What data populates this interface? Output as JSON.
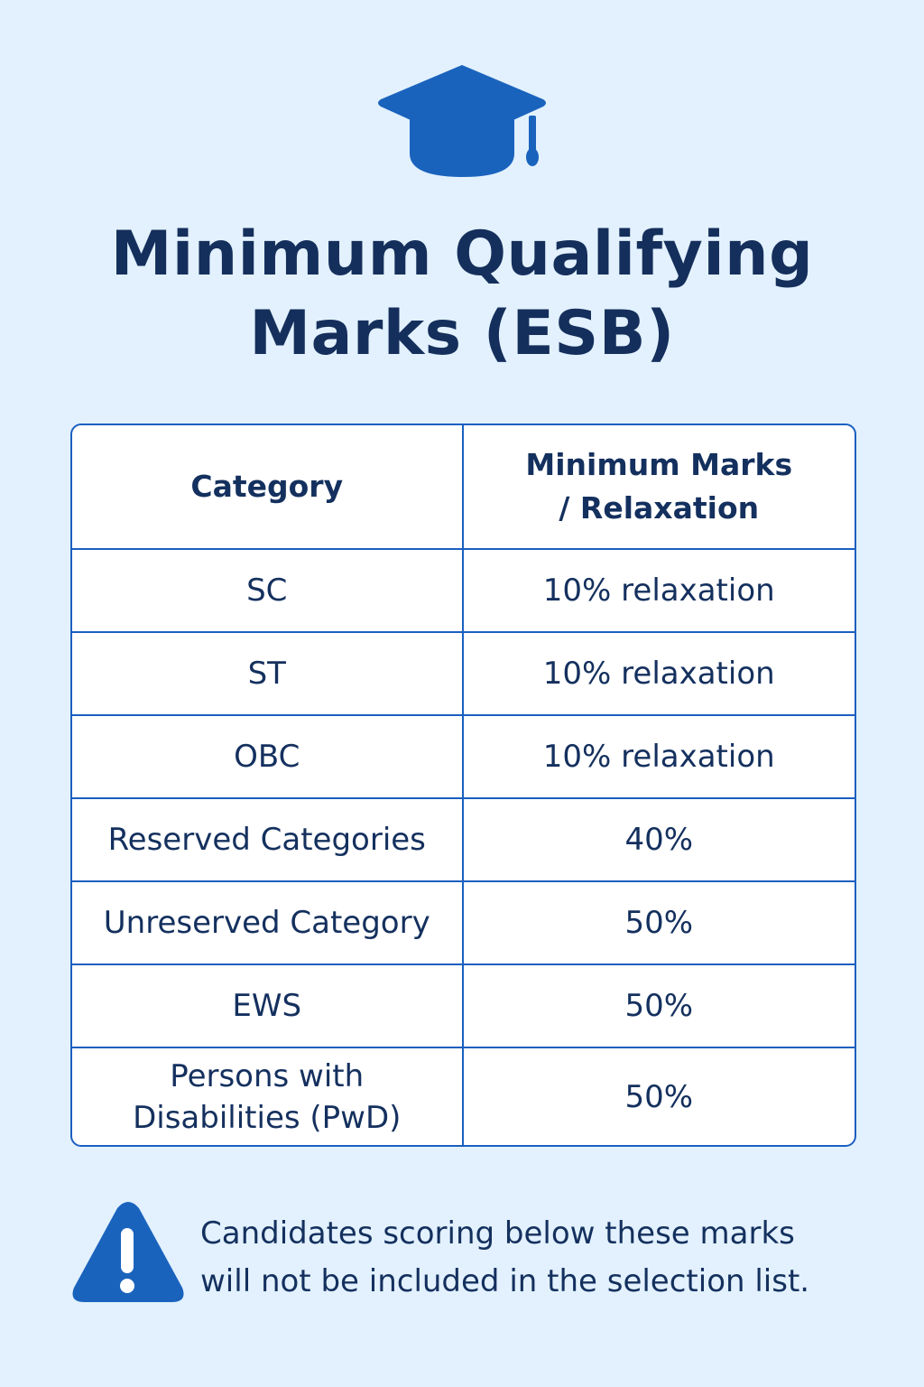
{
  "header": {
    "icon": "graduation-cap-icon",
    "title": "Minimum Qualifying Marks (ESB)"
  },
  "table": {
    "columns": [
      "Category",
      "Minimum Marks / Relaxation"
    ],
    "rows": [
      {
        "category": "SC",
        "marks": "10% relaxation"
      },
      {
        "category": "ST",
        "marks": "10% relaxation"
      },
      {
        "category": "OBC",
        "marks": "10% relaxation"
      },
      {
        "category": "Reserved Categories",
        "marks": "40%"
      },
      {
        "category": "Unreserved Category",
        "marks": "50%"
      },
      {
        "category": "EWS",
        "marks": "50%"
      },
      {
        "category": "Persons with Disabilities (PwD)",
        "marks": "50%"
      }
    ]
  },
  "note": {
    "icon": "warning-icon",
    "line1": "Candidates scoring below these marks",
    "line2": "will not be included in the selection list."
  },
  "colors": {
    "background": "#e2f1fd",
    "accent": "#1a63bd",
    "text": "#14305e"
  }
}
